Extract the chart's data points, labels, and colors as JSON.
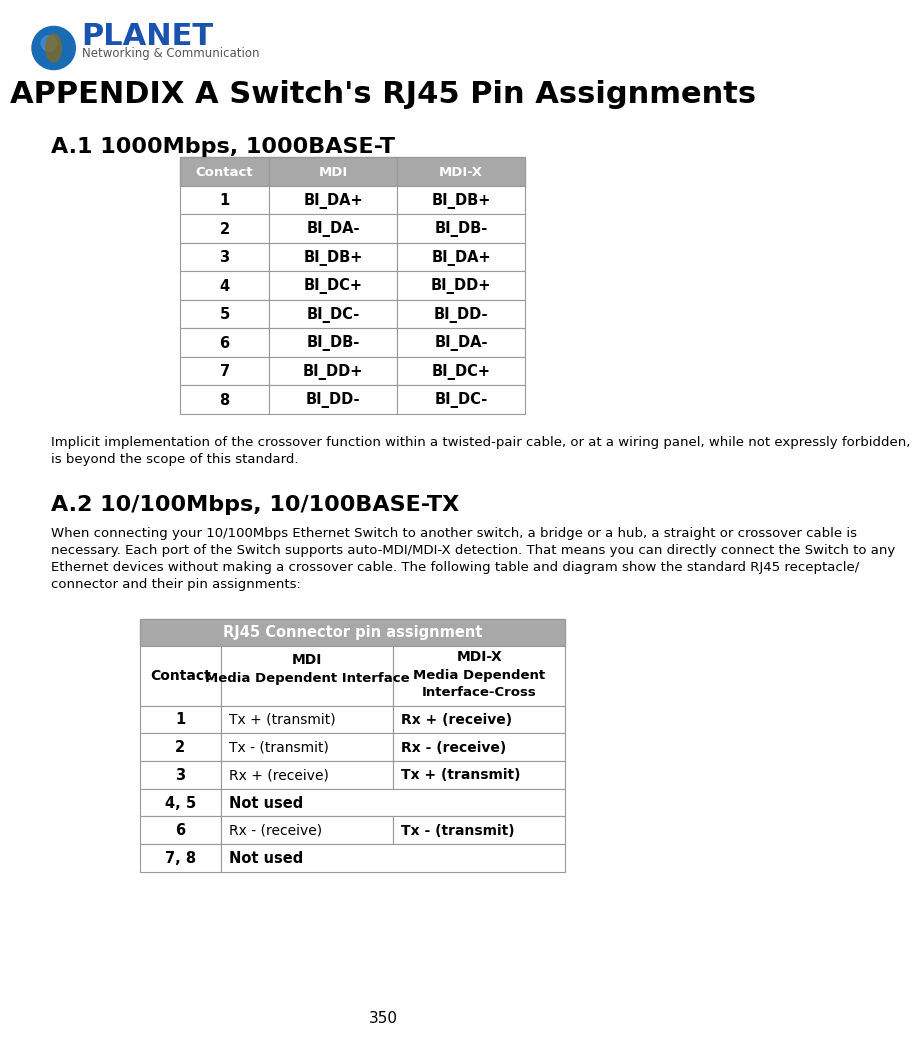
{
  "title": "APPENDIX A Switch's RJ45 Pin Assignments",
  "section1_title": "A.1 1000Mbps, 1000BASE-T",
  "section2_title": "A.2 10/100Mbps, 10/100BASE-TX",
  "table1_header": [
    "Contact",
    "MDI",
    "MDI-X"
  ],
  "table1_rows": [
    [
      "1",
      "BI_DA+",
      "BI_DB+"
    ],
    [
      "2",
      "BI_DA-",
      "BI_DB-"
    ],
    [
      "3",
      "BI_DB+",
      "BI_DA+"
    ],
    [
      "4",
      "BI_DC+",
      "BI_DD+"
    ],
    [
      "5",
      "BI_DC-",
      "BI_DD-"
    ],
    [
      "6",
      "BI_DB-",
      "BI_DA-"
    ],
    [
      "7",
      "BI_DD+",
      "BI_DC+"
    ],
    [
      "8",
      "BI_DD-",
      "BI_DC-"
    ]
  ],
  "section1_note_line1": "Implicit implementation of the crossover function within a twisted-pair cable, or at a wiring panel, while not expressly forbidden,",
  "section1_note_line2": "is beyond the scope of this standard.",
  "section2_para_line1": "When connecting your 10/100Mbps Ethernet Switch to another switch, a bridge or a hub, a straight or crossover cable is",
  "section2_para_line2": "necessary. Each port of the Switch supports auto-MDI/MDI-X detection. That means you can directly connect the Switch to any",
  "section2_para_line3": "Ethernet devices without making a crossover cable. The following table and diagram show the standard RJ45 receptacle/",
  "section2_para_line4": "connector and their pin assignments:",
  "table2_title": "RJ45 Connector pin assignment",
  "table2_header_contact": "Contact",
  "table2_header_mdi": "MDI",
  "table2_header_mdi_sub": "Media Dependent Interface",
  "table2_header_mdix": "MDI-X",
  "table2_header_mdix_sub1": "Media Dependent",
  "table2_header_mdix_sub2": "Interface-Cross",
  "table2_rows": [
    [
      "1",
      "Tx + (transmit)",
      "Rx + (receive)"
    ],
    [
      "2",
      "Tx - (transmit)",
      "Rx - (receive)"
    ],
    [
      "3",
      "Rx + (receive)",
      "Tx + (transmit)"
    ],
    [
      "4, 5",
      "Not used",
      ""
    ],
    [
      "6",
      "Rx - (receive)",
      "Tx - (transmit)"
    ],
    [
      "7, 8",
      "Not used",
      ""
    ]
  ],
  "page_number": "350",
  "header_bg": "#a8a8a8",
  "header_text_color": "#ffffff",
  "border_color": "#999999",
  "background_color": "#ffffff",
  "logo_planet_color": "#1a52b0",
  "logo_subtitle_color": "#555555"
}
